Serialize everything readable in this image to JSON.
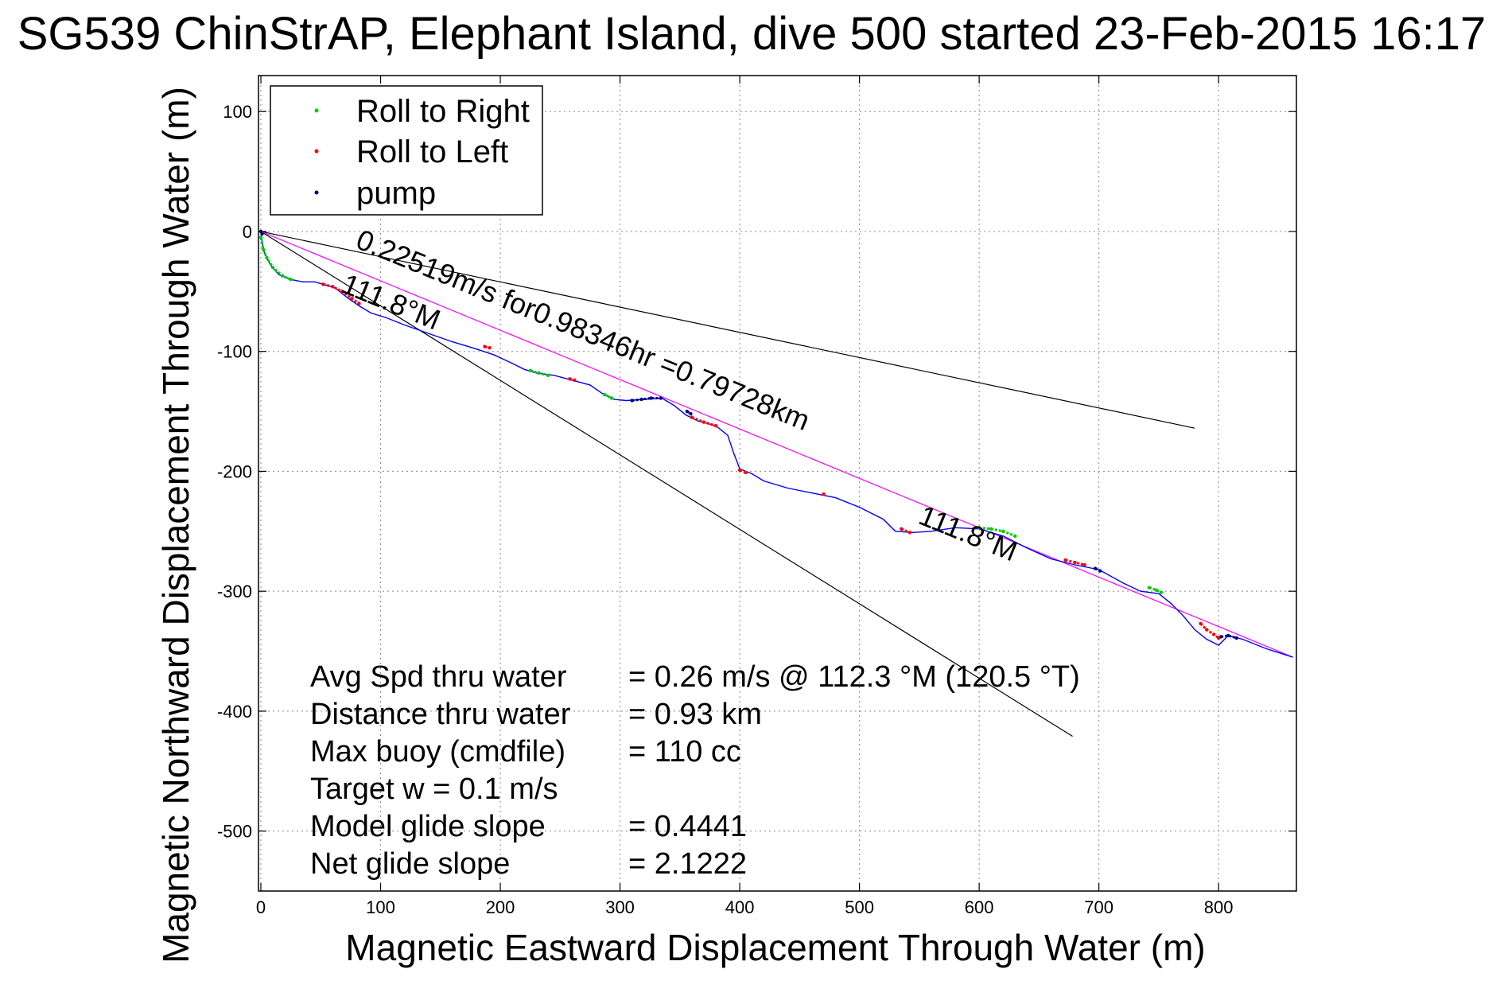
{
  "chart_data": {
    "type": "line",
    "title": "SG539 ChinStrAP, Elephant Island, dive 500 started 23-Feb-2015 16:17",
    "xlabel": "Magnetic Eastward Displacement Through Water (m)",
    "ylabel": "Magnetic Northward Displacement Through Water (m)",
    "xlim": [
      -2,
      865
    ],
    "ylim": [
      -550,
      130
    ],
    "x_ticks": [
      0,
      100,
      200,
      300,
      400,
      500,
      600,
      700,
      800
    ],
    "y_ticks": [
      100,
      0,
      -100,
      -200,
      -300,
      -400,
      -500
    ],
    "grid": true,
    "legend_placement": "top-left",
    "legend": [
      {
        "label": "Roll to Right",
        "color": "#00cc00"
      },
      {
        "label": "Roll to Left",
        "color": "#ff0000"
      },
      {
        "label": "pump",
        "color": "#000080"
      }
    ],
    "track": {
      "color": "#0000ff",
      "x": [
        0,
        1,
        3,
        8,
        15,
        25,
        35,
        45,
        52,
        62,
        72,
        82,
        92,
        105,
        120,
        140,
        160,
        180,
        195,
        210,
        220,
        230,
        245,
        260,
        275,
        285,
        295,
        305,
        320,
        335,
        345,
        355,
        365,
        380,
        390,
        395,
        400,
        410,
        420,
        440,
        460,
        480,
        500,
        520,
        530,
        545,
        560,
        580,
        600,
        620,
        640,
        660,
        680,
        700,
        720,
        735,
        750,
        760,
        770,
        780,
        790,
        800,
        808,
        820,
        840,
        862
      ],
      "y": [
        0,
        -8,
        -18,
        -28,
        -36,
        -40,
        -42,
        -42,
        -44,
        -47,
        -55,
        -62,
        -68,
        -72,
        -78,
        -85,
        -92,
        -98,
        -103,
        -110,
        -115,
        -118,
        -120,
        -124,
        -128,
        -135,
        -140,
        -141,
        -140,
        -139,
        -145,
        -153,
        -158,
        -162,
        -170,
        -185,
        -198,
        -202,
        -208,
        -214,
        -218,
        -222,
        -230,
        -240,
        -250,
        -251,
        -250,
        -247,
        -248,
        -254,
        -264,
        -273,
        -278,
        -282,
        -293,
        -300,
        -302,
        -310,
        -320,
        -332,
        -340,
        -345,
        -337,
        -340,
        -348,
        -355
      ]
    },
    "markers": {
      "roll_right": [
        {
          "x": [
            0,
            2,
            5,
            10,
            18,
            25
          ],
          "y": [
            -5,
            -15,
            -22,
            -30,
            -37,
            -40
          ]
        },
        {
          "x": [
            225,
            232,
            240
          ],
          "y": [
            -116,
            -118,
            -120
          ]
        },
        {
          "x": [
            287,
            293
          ],
          "y": [
            -136,
            -139
          ]
        },
        {
          "x": [
            600,
            610,
            620,
            630
          ],
          "y": [
            -247,
            -248,
            -250,
            -254
          ]
        },
        {
          "x": [
            742,
            748,
            752
          ],
          "y": [
            -297,
            -299,
            -301
          ]
        }
      ],
      "roll_left": [
        {
          "x": [
            52,
            60,
            68,
            76,
            82
          ],
          "y": [
            -44,
            -46,
            -50,
            -56,
            -60
          ]
        },
        {
          "x": [
            187,
            191
          ],
          "y": [
            -96,
            -97
          ]
        },
        {
          "x": [
            258,
            262
          ],
          "y": [
            -123,
            -124
          ]
        },
        {
          "x": [
            360,
            370,
            380
          ],
          "y": [
            -155,
            -159,
            -162
          ]
        },
        {
          "x": [
            400,
            405
          ],
          "y": [
            -199,
            -201
          ]
        },
        {
          "x": [
            470
          ],
          "y": [
            -219
          ]
        },
        {
          "x": [
            535,
            542
          ],
          "y": [
            -248,
            -251
          ]
        },
        {
          "x": [
            672,
            680,
            688
          ],
          "y": [
            -274,
            -276,
            -278
          ]
        },
        {
          "x": [
            785,
            790,
            796,
            800
          ],
          "y": [
            -327,
            -332,
            -336,
            -339
          ]
        }
      ],
      "pump": [
        {
          "x": [
            0,
            1
          ],
          "y": [
            0,
            -2
          ]
        },
        {
          "x": [
            310,
            318,
            326,
            334
          ],
          "y": [
            -141,
            -140,
            -139,
            -139
          ]
        },
        {
          "x": [
            356,
            359
          ],
          "y": [
            -150,
            -152
          ]
        },
        {
          "x": [
            697,
            701
          ],
          "y": [
            -281,
            -283
          ]
        },
        {
          "x": [
            802,
            808,
            815
          ],
          "y": [
            -338,
            -337,
            -339
          ]
        }
      ]
    },
    "guide_lines": [
      {
        "x": [
          0,
          780
        ],
        "y": [
          0,
          -164
        ],
        "color": "#000000"
      },
      {
        "x": [
          0,
          678
        ],
        "y": [
          0,
          -421
        ],
        "color": "#000000"
      },
      {
        "x": [
          0,
          862
        ],
        "y": [
          0,
          -355
        ],
        "color": "#ff00ff"
      }
    ],
    "annotations": [
      {
        "text": "0.22519m/s for0.98346hr =0.79728km",
        "x": 78,
        "y": -13,
        "angle": 22.2
      },
      {
        "text": "111.8°M",
        "x": 66,
        "y": -50,
        "angle": 22.2
      },
      {
        "text": "111.8°M",
        "x": 548,
        "y": -243,
        "angle": 22.2
      }
    ],
    "stats": [
      {
        "label": "Avg Spd thru water",
        "value": "=  0.26 m/s @ 112.3 °M (120.5 °T)"
      },
      {
        "label": "Distance thru water",
        "value": "=  0.93 km"
      },
      {
        "label": "Max buoy (cmdfile)",
        "value": "= 110 cc"
      },
      {
        "label": "Target w    = 0.1 m/s",
        "value": ""
      },
      {
        "label": "Model glide slope",
        "value": "= 0.4441"
      },
      {
        "label": "Net glide slope",
        "value": "= 2.1222"
      }
    ]
  }
}
